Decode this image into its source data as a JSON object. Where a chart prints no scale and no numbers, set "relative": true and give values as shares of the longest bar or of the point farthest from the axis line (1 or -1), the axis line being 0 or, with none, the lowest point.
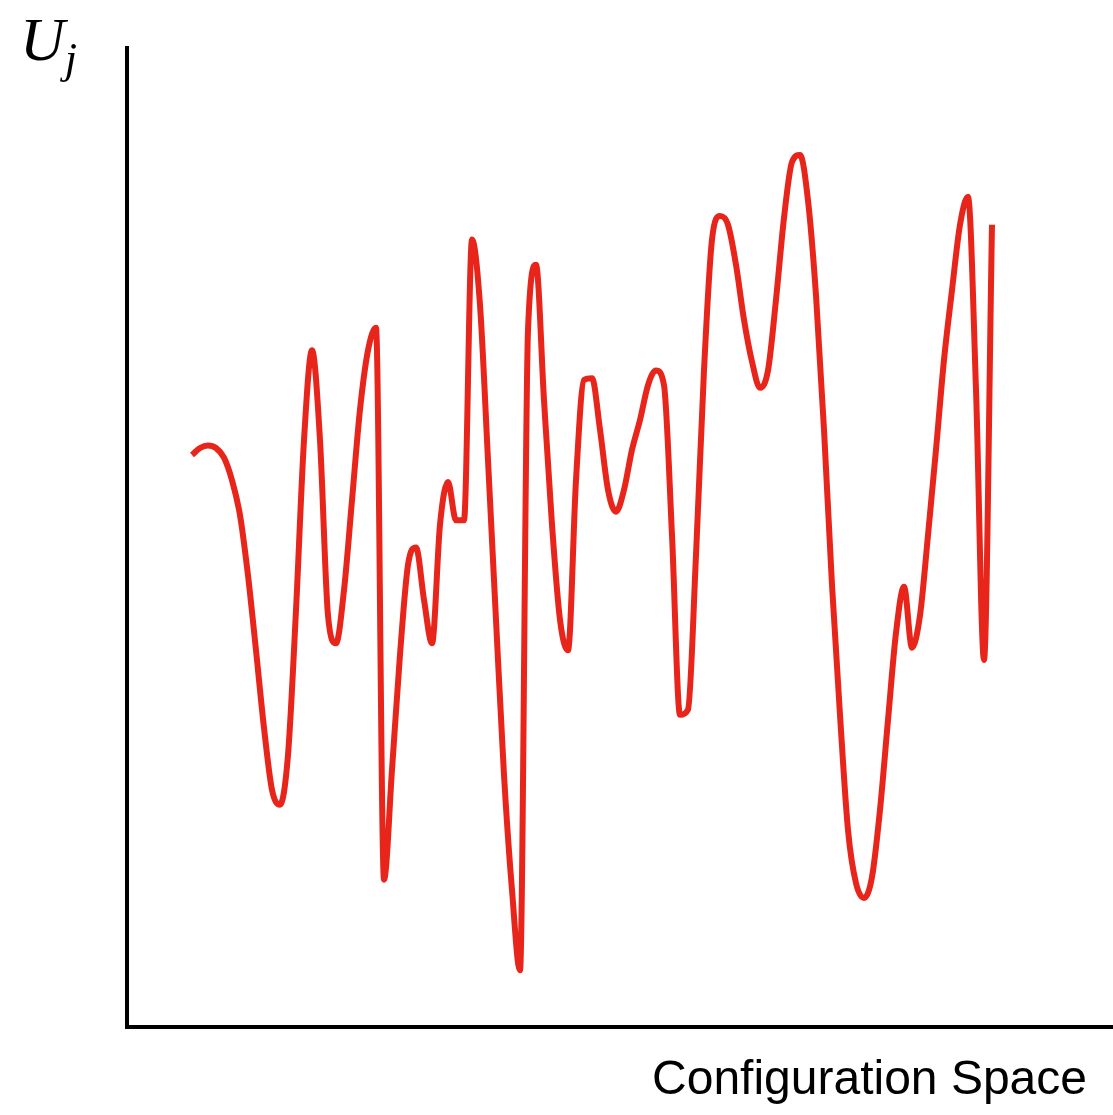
{
  "chart_data": {
    "type": "line",
    "relative": true,
    "ylabel": "U$_{j}$",
    "xlabel": "Configuration Space",
    "legend": false,
    "marker": "none",
    "line_style": "solid",
    "categories": [
      null,
      null,
      null,
      null,
      null,
      null,
      null,
      null,
      null,
      null,
      null,
      null,
      null,
      null,
      null,
      null,
      null,
      null,
      null,
      null,
      null,
      null,
      null,
      null,
      null,
      null,
      null,
      null,
      null,
      null,
      null,
      null,
      null,
      null,
      null,
      null,
      null,
      null,
      null,
      null,
      null,
      null,
      null,
      null,
      null,
      null,
      null,
      null,
      null,
      null,
      null,
      null,
      null,
      null,
      null,
      null,
      null,
      null,
      null,
      null,
      null,
      null,
      null,
      null,
      null,
      null,
      null,
      null,
      null,
      null,
      null,
      null,
      null,
      null,
      null,
      null,
      null,
      null,
      null,
      null,
      null,
      null,
      null,
      null,
      null,
      null,
      null,
      null,
      null,
      null,
      null,
      null,
      null,
      null,
      null,
      null,
      null,
      null,
      null,
      null,
      null
    ],
    "series": [
      {
        "color": "#e8251a",
        "values": [
          0.656,
          0.664,
          0.667,
          0.664,
          0.653,
          0.627,
          0.587,
          0.518,
          0.432,
          0.343,
          0.272,
          0.255,
          0.312,
          0.478,
          0.673,
          0.776,
          0.673,
          0.472,
          0.44,
          0.501,
          0.604,
          0.708,
          0.776,
          0.802,
          0.169,
          0.295,
          0.427,
          0.53,
          0.55,
          0.49,
          0.44,
          0.576,
          0.625,
          0.581,
          0.581,
          0.903,
          0.828,
          0.65,
          0.467,
          0.289,
          0.157,
          0.065,
          0.799,
          0.874,
          0.719,
          0.576,
          0.467,
          0.432,
          0.627,
          0.742,
          0.744,
          0.685,
          0.616,
          0.591,
          0.616,
          0.662,
          0.696,
          0.736,
          0.753,
          0.736,
          0.564,
          0.358,
          0.364,
          0.541,
          0.753,
          0.903,
          0.93,
          0.92,
          0.874,
          0.811,
          0.763,
          0.733,
          0.753,
          0.834,
          0.928,
          0.992,
          1,
          0.948,
          0.839,
          0.685,
          0.507,
          0.358,
          0.226,
          0.165,
          0.148,
          0.172,
          0.249,
          0.352,
          0.452,
          0.505,
          0.435,
          0.472,
          0.564,
          0.662,
          0.765,
          0.845,
          0.92,
          0.952,
          0.731,
          0.421,
          0.92
        ]
      }
    ]
  }
}
